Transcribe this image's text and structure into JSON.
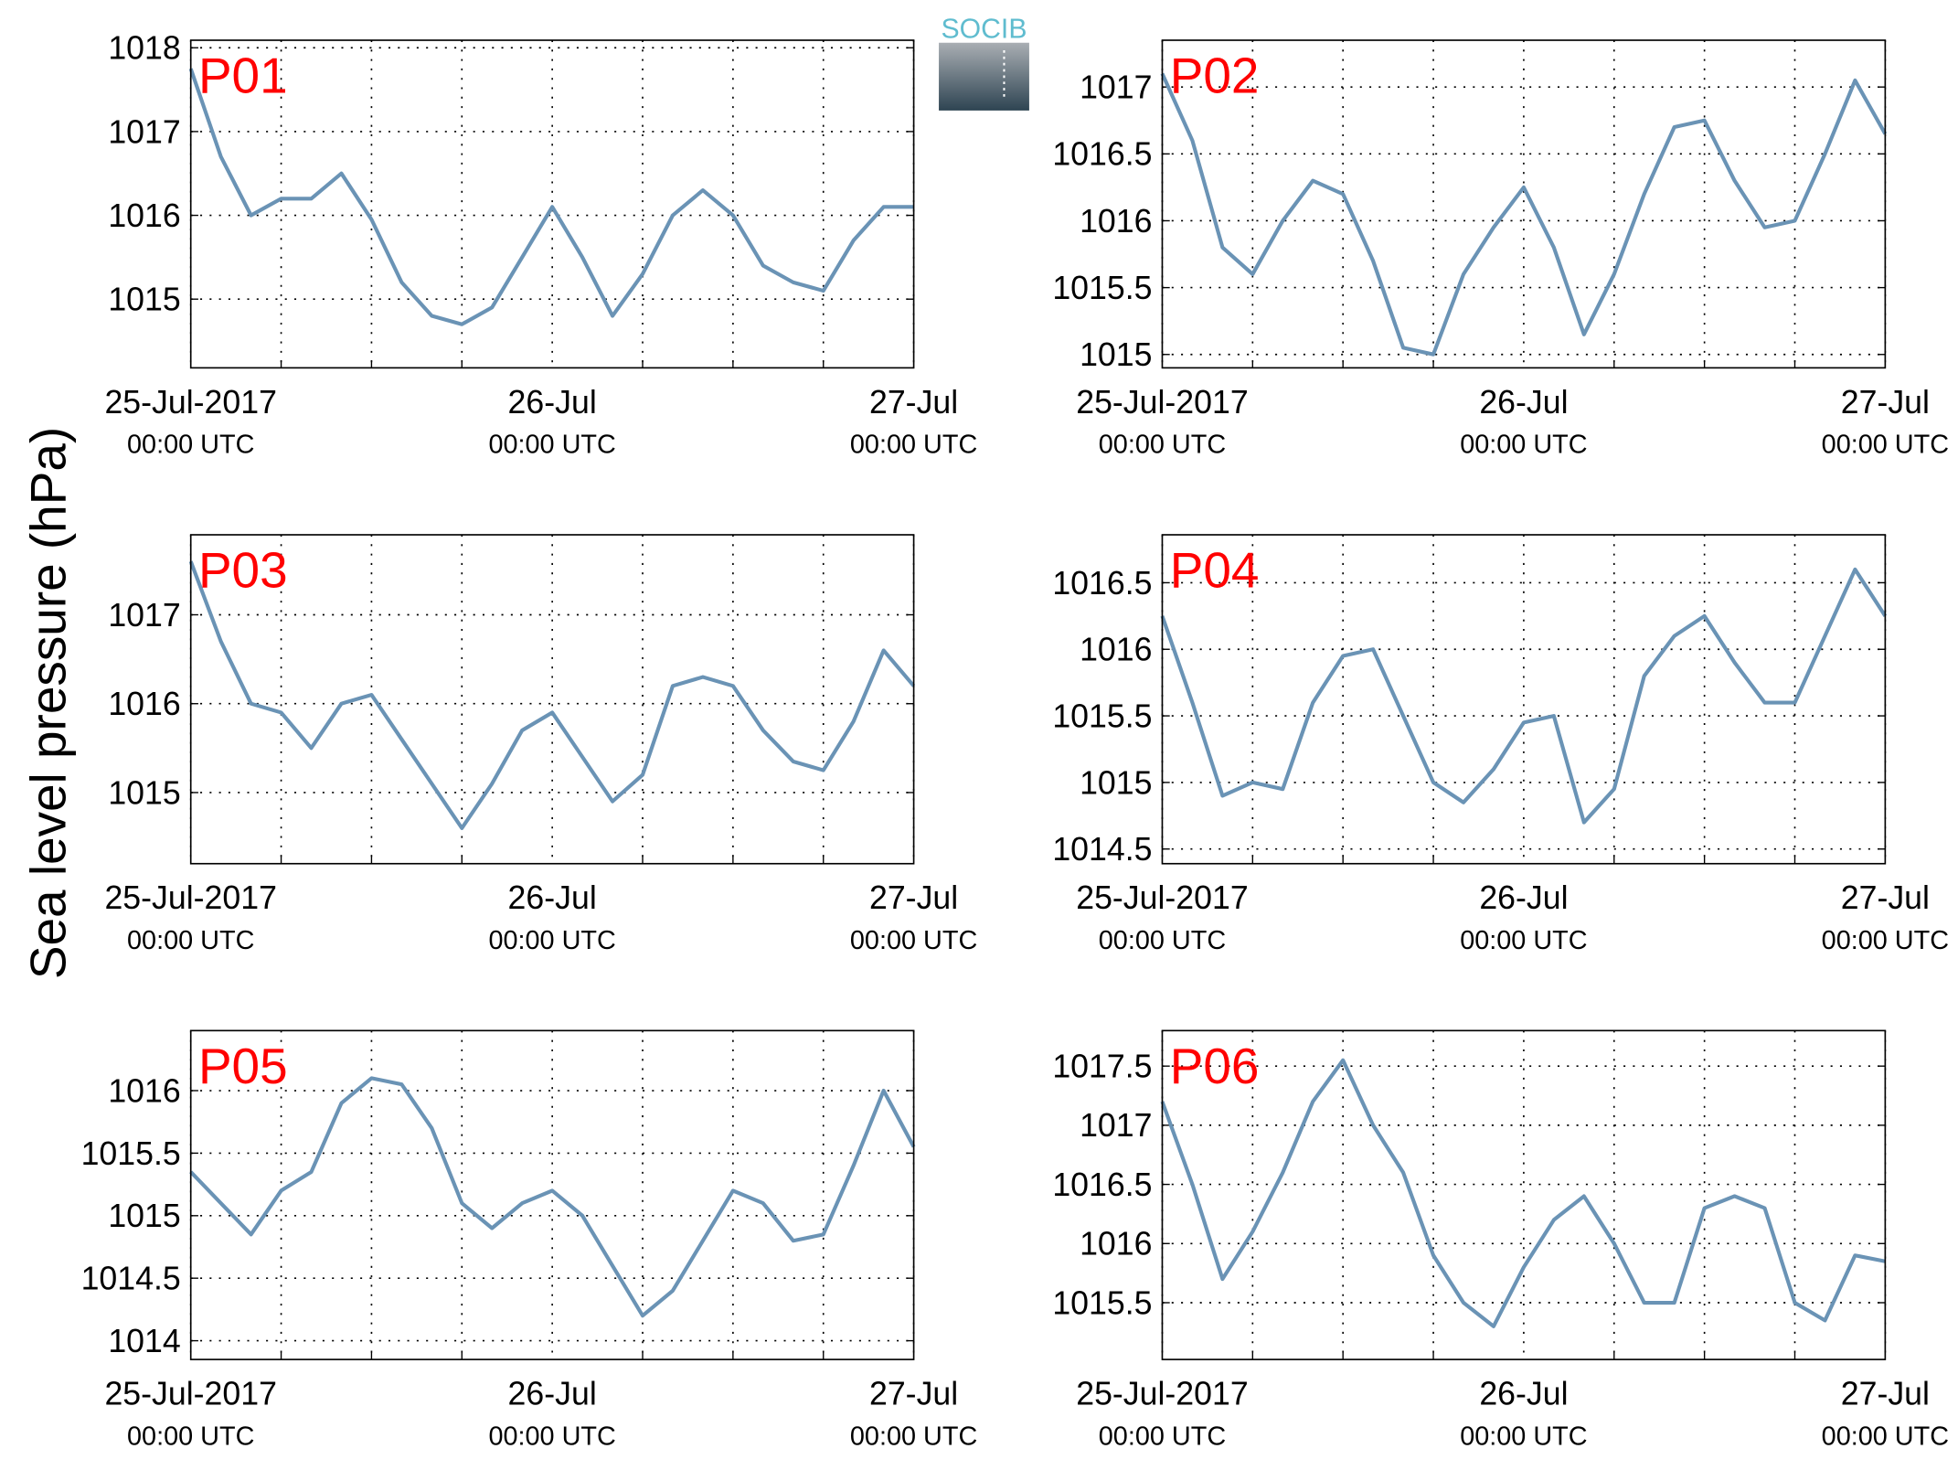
{
  "ylabel": "Sea level pressure (hPa)",
  "logo": "SOCIB",
  "chart_data": [
    {
      "type": "line",
      "title": "P01",
      "color": "#6a93b5",
      "grid": true,
      "x": [
        0,
        2,
        4,
        6,
        8,
        10,
        12,
        14,
        16,
        18,
        20,
        22,
        24,
        26,
        28,
        30,
        32,
        34,
        36,
        38,
        40,
        42,
        44,
        46,
        48
      ],
      "values": [
        1017.75,
        1016.7,
        1016.0,
        1016.2,
        1016.2,
        1016.5,
        1015.95,
        1015.2,
        1014.8,
        1014.7,
        1014.9,
        1015.5,
        1016.1,
        1015.5,
        1014.8,
        1015.3,
        1016.0,
        1016.3,
        1016.0,
        1015.4,
        1015.2,
        1015.1,
        1015.7,
        1016.1,
        1016.1
      ],
      "xlim": [
        0,
        48
      ],
      "xticks": [
        {
          "value": 0,
          "label": "25-Jul-2017"
        },
        {
          "value": 24,
          "label": "26-Jul"
        },
        {
          "value": 48,
          "label": "27-Jul"
        }
      ],
      "xtick_sublabels": [
        "00:00 UTC",
        "00:00 UTC",
        "00:00 UTC"
      ],
      "xminor": [
        6,
        12,
        18,
        30,
        36,
        42
      ],
      "ylim": [
        1014.18,
        1018.09
      ],
      "yticks": [
        1015,
        1016,
        1017,
        1018
      ]
    },
    {
      "type": "line",
      "title": "P02",
      "color": "#6a93b5",
      "grid": true,
      "x": [
        0,
        2,
        4,
        6,
        8,
        10,
        12,
        14,
        16,
        18,
        20,
        22,
        24,
        26,
        28,
        30,
        32,
        34,
        36,
        38,
        40,
        42,
        44,
        46,
        48
      ],
      "values": [
        1017.1,
        1016.6,
        1015.8,
        1015.6,
        1016.0,
        1016.3,
        1016.2,
        1015.7,
        1015.05,
        1015.0,
        1015.6,
        1015.95,
        1016.25,
        1015.8,
        1015.15,
        1015.6,
        1016.2,
        1016.7,
        1016.75,
        1016.3,
        1015.95,
        1016.0,
        1016.5,
        1017.05,
        1016.65
      ],
      "xlim": [
        0,
        48
      ],
      "xticks": [
        {
          "value": 0,
          "label": "25-Jul-2017"
        },
        {
          "value": 24,
          "label": "26-Jul"
        },
        {
          "value": 48,
          "label": "27-Jul"
        }
      ],
      "xtick_sublabels": [
        "00:00 UTC",
        "00:00 UTC",
        "00:00 UTC"
      ],
      "xminor": [
        6,
        12,
        18,
        30,
        36,
        42
      ],
      "ylim": [
        1014.9,
        1017.35
      ],
      "yticks": [
        1015,
        1015.5,
        1016,
        1016.5,
        1017
      ]
    },
    {
      "type": "line",
      "title": "P03",
      "color": "#6a93b5",
      "grid": true,
      "x": [
        0,
        2,
        4,
        6,
        8,
        10,
        12,
        14,
        16,
        18,
        20,
        22,
        24,
        26,
        28,
        30,
        32,
        34,
        36,
        38,
        40,
        42,
        44,
        46,
        48
      ],
      "values": [
        1017.6,
        1016.7,
        1016.0,
        1015.9,
        1015.5,
        1016.0,
        1016.1,
        1015.6,
        1015.1,
        1014.6,
        1015.1,
        1015.7,
        1015.9,
        1015.4,
        1014.9,
        1015.2,
        1016.2,
        1016.3,
        1016.2,
        1015.7,
        1015.35,
        1015.25,
        1015.8,
        1016.6,
        1016.2
      ],
      "xlim": [
        0,
        48
      ],
      "xticks": [
        {
          "value": 0,
          "label": "25-Jul-2017"
        },
        {
          "value": 24,
          "label": "26-Jul"
        },
        {
          "value": 48,
          "label": "27-Jul"
        }
      ],
      "xtick_sublabels": [
        "00:00 UTC",
        "00:00 UTC",
        "00:00 UTC"
      ],
      "xminor": [
        6,
        12,
        18,
        30,
        36,
        42
      ],
      "ylim": [
        1014.2,
        1017.9
      ],
      "yticks": [
        1015,
        1016,
        1017
      ]
    },
    {
      "type": "line",
      "title": "P04",
      "color": "#6a93b5",
      "grid": true,
      "x": [
        0,
        2,
        4,
        6,
        8,
        10,
        12,
        14,
        16,
        18,
        20,
        22,
        24,
        26,
        28,
        30,
        32,
        34,
        36,
        38,
        40,
        42,
        44,
        46,
        48
      ],
      "values": [
        1016.25,
        1015.6,
        1014.9,
        1015.0,
        1014.95,
        1015.6,
        1015.95,
        1016.0,
        1015.5,
        1015.0,
        1014.85,
        1015.1,
        1015.45,
        1015.5,
        1014.7,
        1014.95,
        1015.8,
        1016.1,
        1016.25,
        1015.9,
        1015.6,
        1015.6,
        1016.1,
        1016.6,
        1016.25
      ],
      "xlim": [
        0,
        48
      ],
      "xticks": [
        {
          "value": 0,
          "label": "25-Jul-2017"
        },
        {
          "value": 24,
          "label": "26-Jul"
        },
        {
          "value": 48,
          "label": "27-Jul"
        }
      ],
      "xtick_sublabels": [
        "00:00 UTC",
        "00:00 UTC",
        "00:00 UTC"
      ],
      "xminor": [
        6,
        12,
        18,
        30,
        36,
        42
      ],
      "ylim": [
        1014.39,
        1016.86
      ],
      "yticks": [
        1014.5,
        1015,
        1015.5,
        1016,
        1016.5
      ]
    },
    {
      "type": "line",
      "title": "P05",
      "color": "#6a93b5",
      "grid": true,
      "x": [
        0,
        2,
        4,
        6,
        8,
        10,
        12,
        14,
        16,
        18,
        20,
        22,
        24,
        26,
        28,
        30,
        32,
        34,
        36,
        38,
        40,
        42,
        44,
        46,
        48
      ],
      "values": [
        1015.35,
        1015.1,
        1014.85,
        1015.2,
        1015.35,
        1015.9,
        1016.1,
        1016.05,
        1015.7,
        1015.1,
        1014.9,
        1015.1,
        1015.2,
        1015.0,
        1014.6,
        1014.2,
        1014.4,
        1014.8,
        1015.2,
        1015.1,
        1014.8,
        1014.85,
        1015.4,
        1016.0,
        1015.55
      ],
      "xlim": [
        0,
        48
      ],
      "xticks": [
        {
          "value": 0,
          "label": "25-Jul-2017"
        },
        {
          "value": 24,
          "label": "26-Jul"
        },
        {
          "value": 48,
          "label": "27-Jul"
        }
      ],
      "xtick_sublabels": [
        "00:00 UTC",
        "00:00 UTC",
        "00:00 UTC"
      ],
      "xminor": [
        6,
        12,
        18,
        30,
        36,
        42
      ],
      "ylim": [
        1013.85,
        1016.48
      ],
      "yticks": [
        1014,
        1014.5,
        1015,
        1015.5,
        1016
      ]
    },
    {
      "type": "line",
      "title": "P06",
      "color": "#6a93b5",
      "grid": true,
      "x": [
        0,
        2,
        4,
        6,
        8,
        10,
        12,
        14,
        16,
        18,
        20,
        22,
        24,
        26,
        28,
        30,
        32,
        34,
        36,
        38,
        40,
        42,
        44,
        46,
        48
      ],
      "values": [
        1017.2,
        1016.5,
        1015.7,
        1016.1,
        1016.6,
        1017.2,
        1017.55,
        1017.0,
        1016.6,
        1015.9,
        1015.5,
        1015.3,
        1015.8,
        1016.2,
        1016.4,
        1016.0,
        1015.5,
        1015.5,
        1016.3,
        1016.4,
        1016.3,
        1015.5,
        1015.35,
        1015.9,
        1015.85
      ],
      "xlim": [
        0,
        48
      ],
      "xticks": [
        {
          "value": 0,
          "label": "25-Jul-2017"
        },
        {
          "value": 24,
          "label": "26-Jul"
        },
        {
          "value": 48,
          "label": "27-Jul"
        }
      ],
      "xtick_sublabels": [
        "00:00 UTC",
        "00:00 UTC",
        "00:00 UTC"
      ],
      "xminor": [
        6,
        12,
        18,
        30,
        36,
        42
      ],
      "ylim": [
        1015.02,
        1017.8
      ],
      "yticks": [
        1015.5,
        1016,
        1016.5,
        1017,
        1017.5
      ]
    }
  ]
}
